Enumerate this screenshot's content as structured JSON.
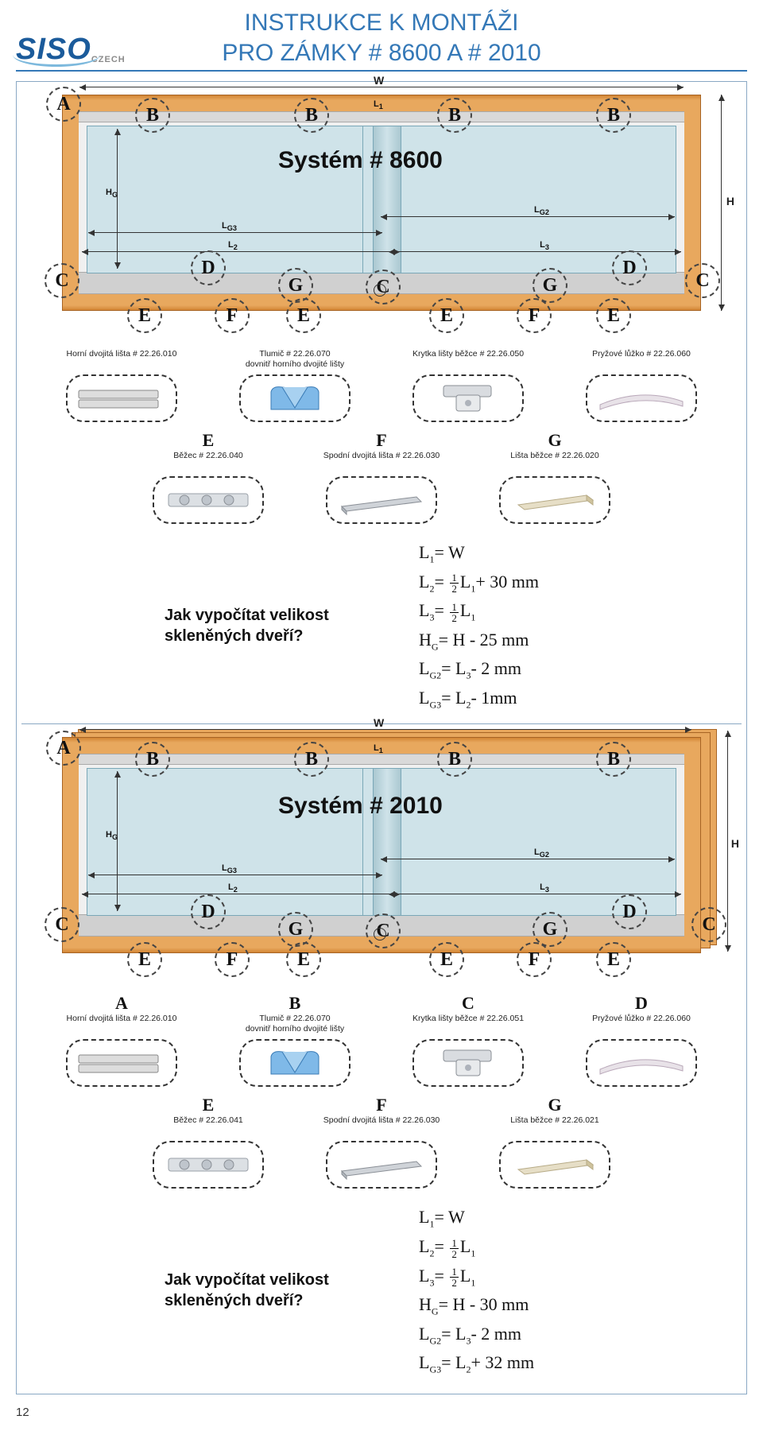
{
  "page_number": "12",
  "title_line1": "INSTRUKCE K MONTÁŽI",
  "title_line2": "PRO ZÁMKY # 8600 A # 2010",
  "logo": {
    "text": "SISO",
    "sub": "CZECH",
    "color": "#1b5b9b"
  },
  "colors": {
    "rule": "#3478b7",
    "wood": "#e49a52",
    "wood_dark": "#a76424",
    "glass": "#cfe3e9",
    "track": "#d0d0d0",
    "dashed": "#333333"
  },
  "system1": {
    "title": "Systém # 8600",
    "dims": {
      "W": "W",
      "L1": "L₁",
      "L2": "L₂",
      "L3": "L₃",
      "LG2": "LG2",
      "LG3": "LG3",
      "HG": "HG",
      "H": "H"
    },
    "markers": [
      "A",
      "B",
      "B",
      "B",
      "B",
      "C",
      "C",
      "C",
      "D",
      "D",
      "E",
      "E",
      "E",
      "E",
      "F",
      "F",
      "G",
      "G"
    ],
    "parts_row1": [
      {
        "letter": "A",
        "label": "Horní dvojitá lišta # 22.26.010",
        "kind": "rail"
      },
      {
        "letter": "B",
        "label": "Tlumič # 22.26.070\ndovnitř horního dvojité lišty",
        "kind": "damper"
      },
      {
        "letter": "C",
        "label": "Krytka lišty běžce # 22.26.050",
        "kind": "cap"
      },
      {
        "letter": "D",
        "label": "Pryžové lůžko # 22.26.060",
        "kind": "rubber"
      }
    ],
    "parts_row2": [
      {
        "letter": "E",
        "label": "Běžec # 22.26.040",
        "kind": "runner"
      },
      {
        "letter": "F",
        "label": "Spodní dvojitá lišta # 22.26.030",
        "kind": "rail2"
      },
      {
        "letter": "G",
        "label": "Lišta běžce # 22.26.020",
        "kind": "bar"
      }
    ],
    "calc_q": "Jak vypočítat velikost skleněných dveří?",
    "formulas": [
      "L₁= W",
      "L₂= ½L₁+ 30 mm",
      "L₃= ½L₁",
      "H_G= H - 25 mm",
      "L_G2= L₃- 2 mm",
      "L_G3= L₂- 1mm"
    ]
  },
  "system2": {
    "title": "Systém # 2010",
    "parts_row1": [
      {
        "letter": "A",
        "label": "Horní dvojitá lišta # 22.26.010",
        "kind": "rail"
      },
      {
        "letter": "B",
        "label": "Tlumič # 22.26.070\ndovnitř horního dvojité lišty",
        "kind": "damper"
      },
      {
        "letter": "C",
        "label": "Krytka lišty běžce # 22.26.051",
        "kind": "cap"
      },
      {
        "letter": "D",
        "label": "Pryžové lůžko # 22.26.060",
        "kind": "rubber"
      }
    ],
    "parts_row2": [
      {
        "letter": "E",
        "label": "Běžec # 22.26.041",
        "kind": "runner"
      },
      {
        "letter": "F",
        "label": "Spodní dvojitá lišta # 22.26.030",
        "kind": "rail2"
      },
      {
        "letter": "G",
        "label": "Lišta běžce # 22.26.021",
        "kind": "bar"
      }
    ],
    "calc_q": "Jak vypočítat velikost skleněných dveří?",
    "formulas": [
      "L₁= W",
      "L₂= ½L₁",
      "L₃= ½L₁",
      "H_G= H - 30 mm",
      "L_G2= L₃- 2 mm",
      "L_G3= L₂+ 32 mm"
    ]
  }
}
